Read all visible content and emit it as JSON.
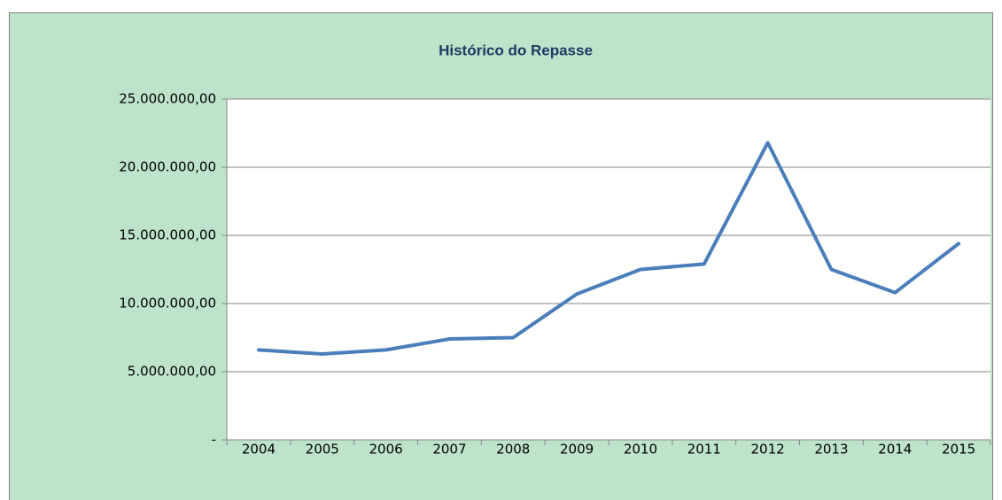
{
  "chart_data": {
    "type": "line",
    "title": "Histórico do Repasse",
    "categories": [
      "2004",
      "2005",
      "2006",
      "2007",
      "2008",
      "2009",
      "2010",
      "2011",
      "2012",
      "2013",
      "2014",
      "2015"
    ],
    "series": [
      {
        "name": "Repasse",
        "color": "#4a7ebb",
        "values": [
          6600000,
          6300000,
          6600000,
          7400000,
          7500000,
          10700000,
          12500000,
          12900000,
          21800000,
          12500000,
          10800000,
          14400000
        ]
      }
    ],
    "ylim": [
      0,
      25000000
    ],
    "yticks": [
      {
        "value": 0,
        "label": "-"
      },
      {
        "value": 5000000,
        "label": "5.000.000,00"
      },
      {
        "value": 10000000,
        "label": "10.000.000,00"
      },
      {
        "value": 15000000,
        "label": "15.000.000,00"
      },
      {
        "value": 20000000,
        "label": "20.000.000,00"
      },
      {
        "value": 25000000,
        "label": "25.000.000,00"
      }
    ],
    "grid": true
  }
}
